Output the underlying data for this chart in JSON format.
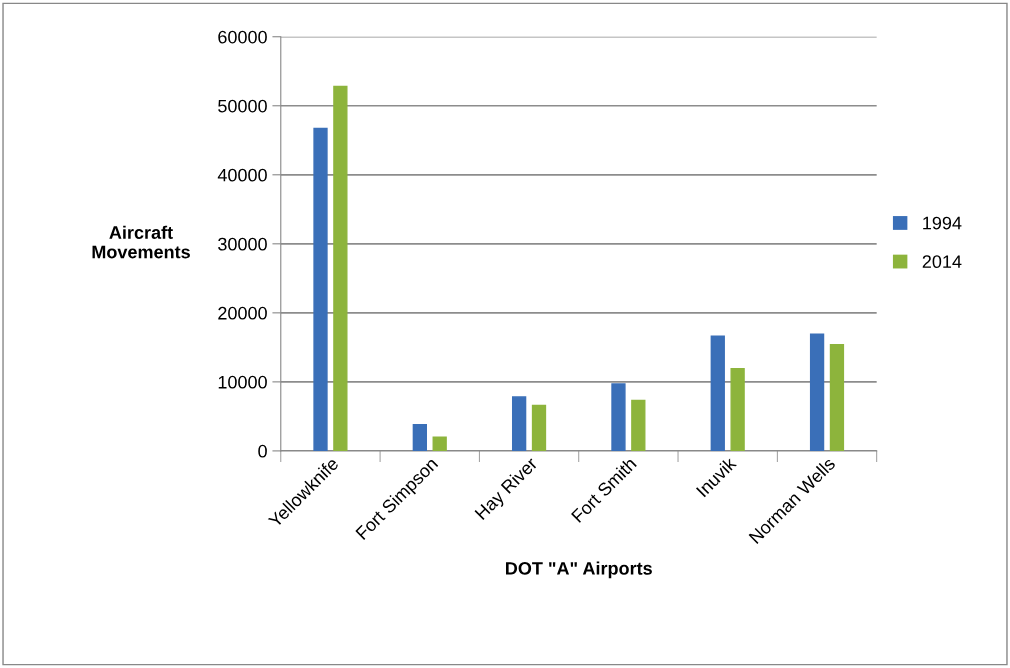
{
  "chart_data": {
    "type": "bar",
    "xlabel": "DOT \"A\" Airports",
    "ylabel": "Aircraft\nMovements",
    "categories": [
      "Yellowknife",
      "Fort Simpson",
      "Hay River",
      "Fort Smith",
      "Inuvik",
      "Norman Wells"
    ],
    "series": [
      {
        "name": "1994",
        "color": "#3a6fb8",
        "values": [
          46700,
          3800,
          7800,
          9700,
          16600,
          16900
        ]
      },
      {
        "name": "2014",
        "color": "#8db43c",
        "values": [
          52800,
          2000,
          6600,
          7300,
          11900,
          15400
        ]
      }
    ],
    "ylim": [
      0,
      60000
    ],
    "yticks": [
      0,
      10000,
      20000,
      30000,
      40000,
      50000,
      60000
    ],
    "grid": "y",
    "legend": "right"
  }
}
